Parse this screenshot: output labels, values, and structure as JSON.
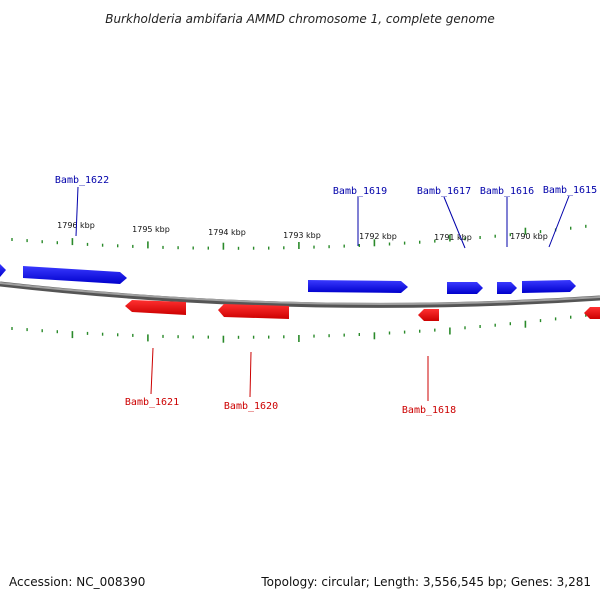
{
  "title": "Burkholderia ambifaria AMMD chromosome 1, complete genome",
  "footer": {
    "accession": "Accession: NC_008390",
    "summary": "Topology: circular; Length: 3,556,545 bp; Genes: 3,281"
  },
  "colors": {
    "forward": "#1a1aff",
    "reverse": "#ff1a1a",
    "tick": "#2a8a2a",
    "backbone": "#808080",
    "forward_label": "#0000aa",
    "reverse_label": "#cc0000"
  },
  "ticks": [
    {
      "label": "1796 kbp"
    },
    {
      "label": "1795 kbp"
    },
    {
      "label": "1794 kbp"
    },
    {
      "label": "1793 kbp"
    },
    {
      "label": "1792 kbp"
    },
    {
      "label": "1791 kbp"
    },
    {
      "label": "1790 kbp"
    }
  ],
  "genes": [
    {
      "name": "Bamb_1622",
      "strand": "forward"
    },
    {
      "name": "Bamb_1621",
      "strand": "reverse"
    },
    {
      "name": "Bamb_1620",
      "strand": "reverse"
    },
    {
      "name": "Bamb_1619",
      "strand": "forward"
    },
    {
      "name": "Bamb_1618",
      "strand": "reverse"
    },
    {
      "name": "Bamb_1617",
      "strand": "forward"
    },
    {
      "name": "Bamb_1616",
      "strand": "forward"
    },
    {
      "name": "Bamb_1615",
      "strand": "forward"
    }
  ]
}
